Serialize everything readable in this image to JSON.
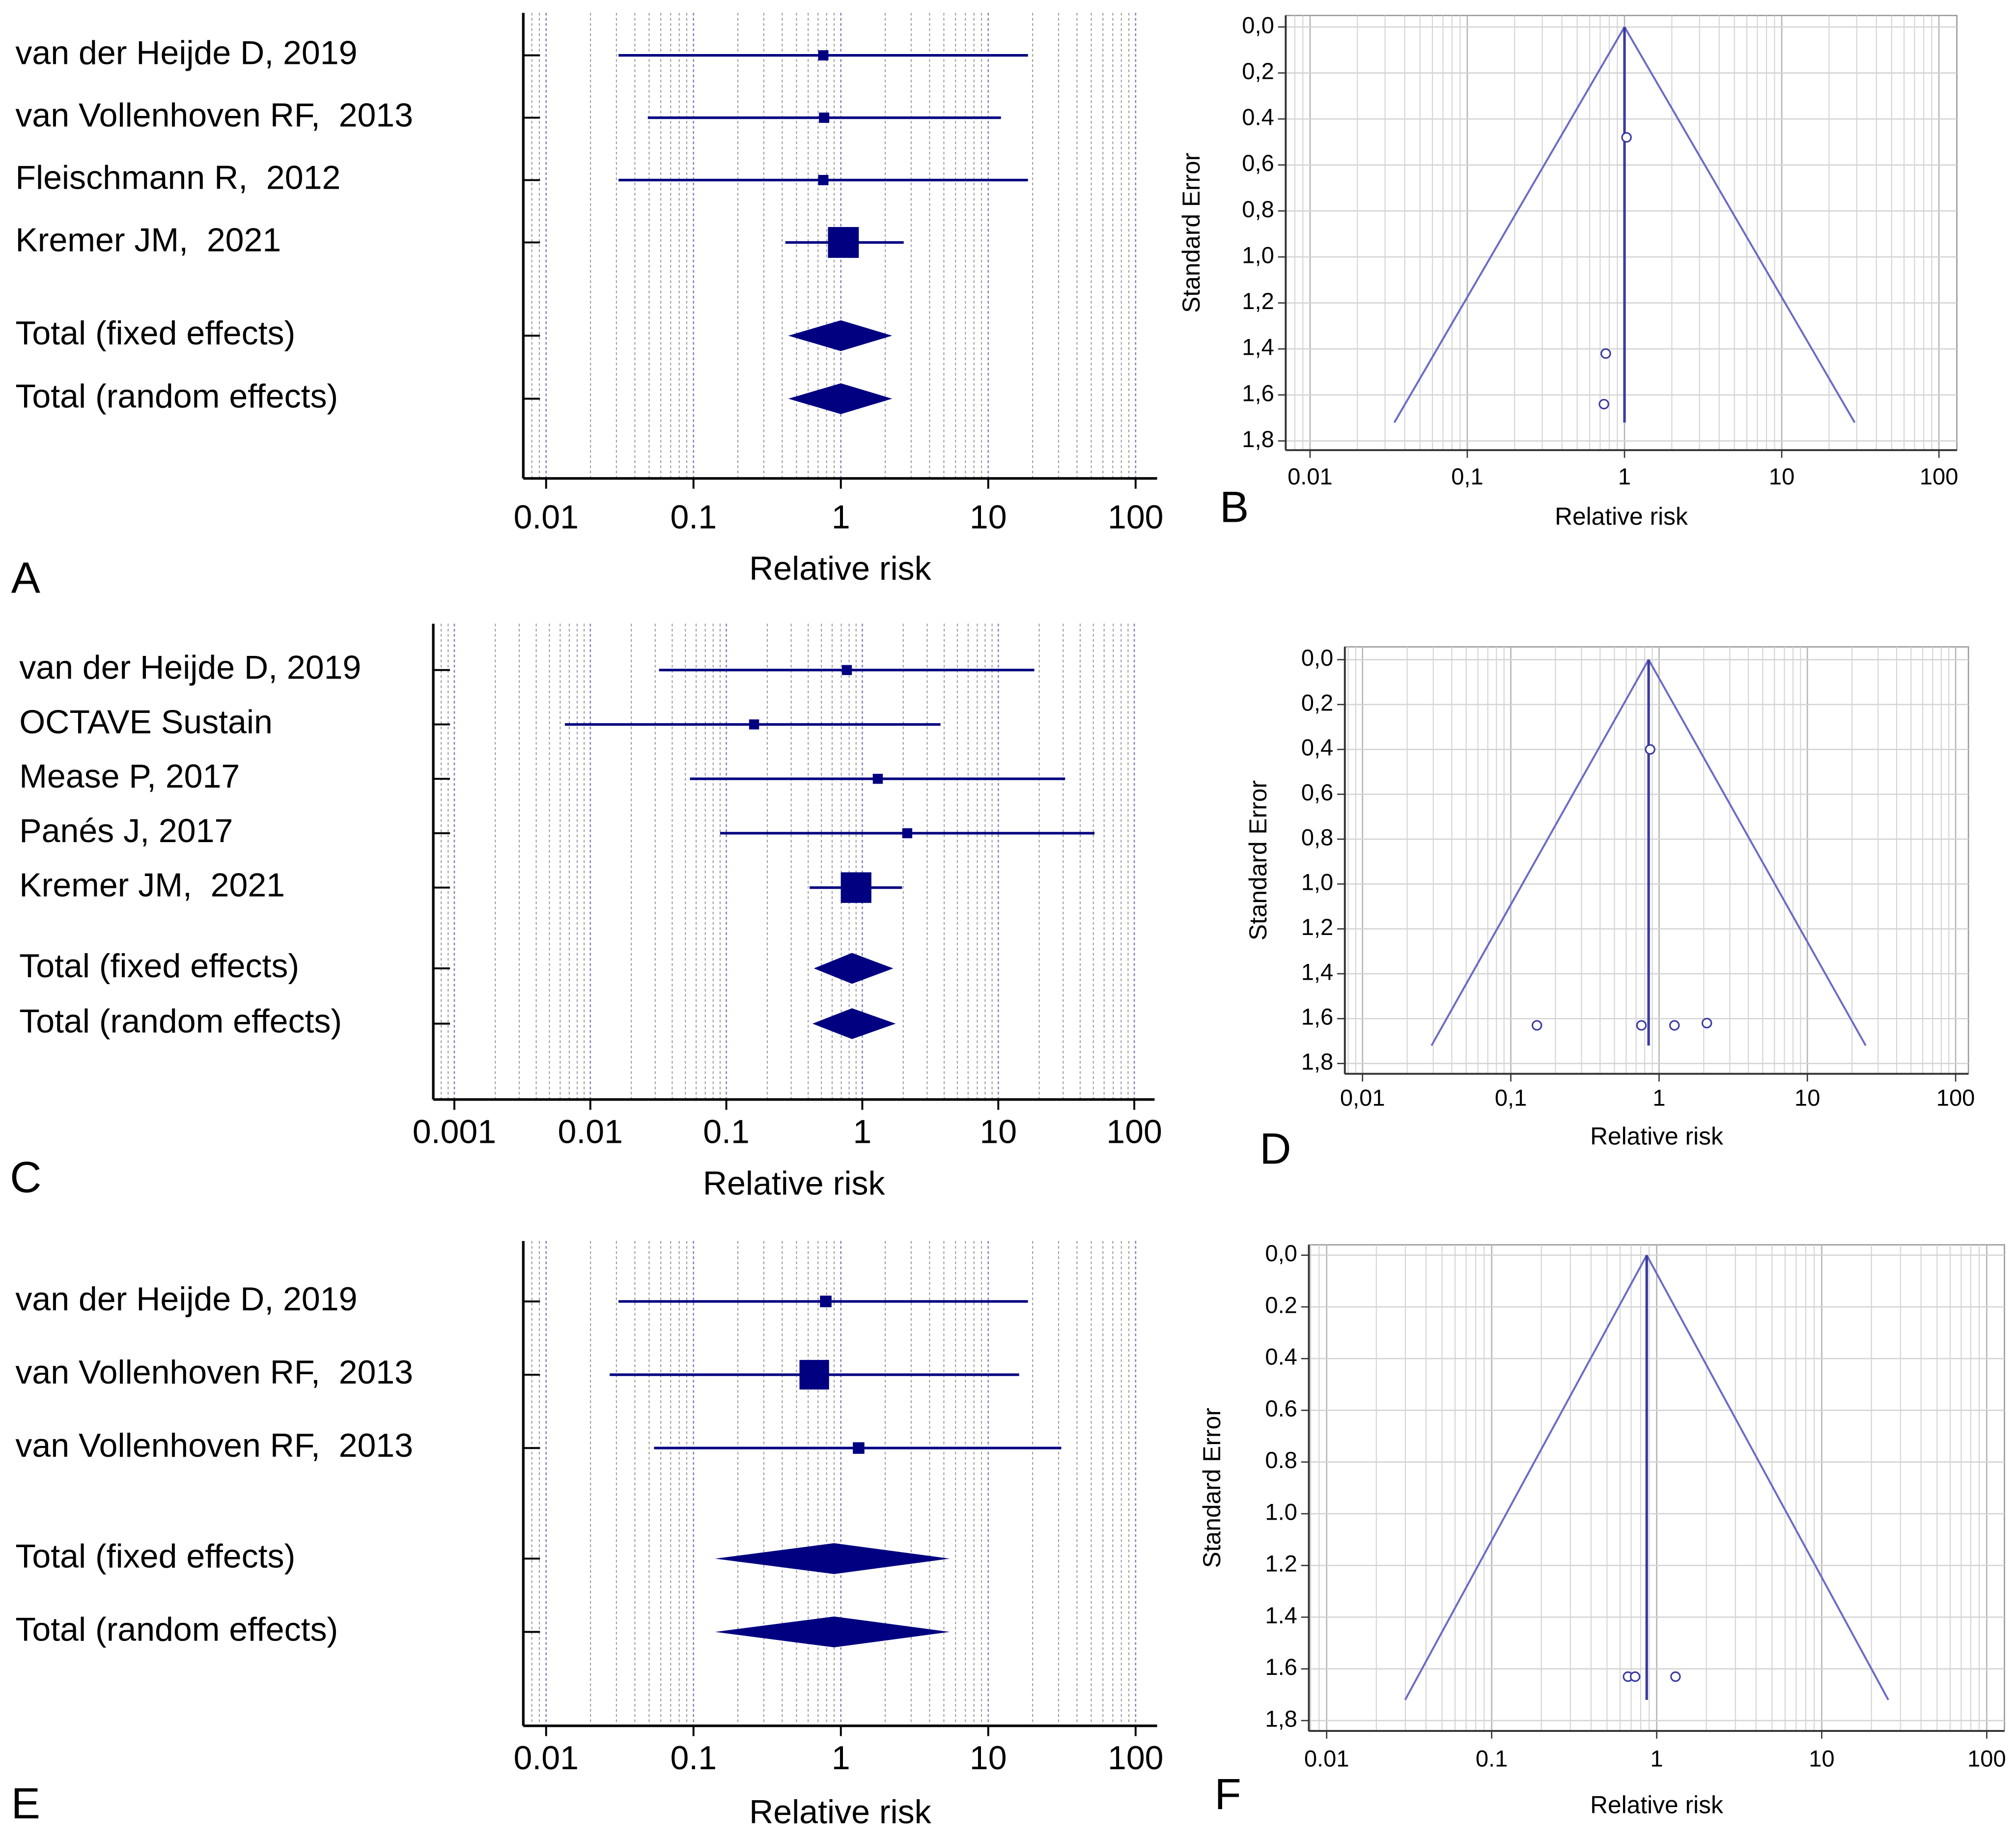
{
  "chart_data": [
    {
      "type": "forest",
      "label": "A",
      "xlabel": "Relative risk",
      "log_x": true,
      "grid": true,
      "color": "#000080",
      "studies": {
        "categories": [
          "van der Heijde D, 2019",
          "van Vollenhoven RF,  2013",
          "Fleischmann R,  2012",
          "Kremer JM,  2021"
        ],
        "values": [
          0.76,
          0.77,
          0.76,
          1.04
        ],
        "lower": [
          0.031,
          0.049,
          0.031,
          0.42
        ],
        "upper": [
          18.6,
          12.2,
          18.6,
          2.67
        ],
        "weights": [
          5,
          5,
          5,
          85
        ]
      },
      "summaries": {
        "categories": [
          "Total (fixed effects)",
          "Total (random effects)"
        ],
        "values": [
          1.0,
          1.0
        ],
        "lower": [
          0.44,
          0.44
        ],
        "upper": [
          2.23,
          2.23
        ]
      },
      "xlim": [
        0.007,
        140
      ],
      "xticks": [
        0.01,
        0.1,
        1,
        10,
        100
      ]
    },
    {
      "type": "funnel",
      "label": "B",
      "xlabel": "Relative risk",
      "ylabel": "Standard Error",
      "log_x": true,
      "grid": true,
      "color": "#6b6bc4",
      "marker_color": "#3a3aa0",
      "x": [
        1.03,
        0.76,
        0.74
      ],
      "values": [
        0.48,
        1.42,
        1.64
      ],
      "pooled_estimate": 1.0,
      "se_max": 1.72,
      "xlim": [
        0.007,
        130
      ],
      "ylim": [
        -0.05,
        1.84
      ],
      "y_inverted": true,
      "xticks": [
        0.01,
        {
          "value": 0.1,
          "label": "0,1"
        },
        1,
        10,
        100
      ],
      "yticks": [
        {
          "value": 0,
          "label": "0,0"
        },
        {
          "value": 0.2,
          "label": "0,2"
        },
        0.4,
        {
          "value": 0.6,
          "label": "0,6"
        },
        {
          "value": 0.8,
          "label": "0,8"
        },
        {
          "value": 1.0,
          "label": "1,0"
        },
        {
          "value": 1.2,
          "label": "1,2"
        },
        {
          "value": 1.4,
          "label": "1,4"
        },
        {
          "value": 1.6,
          "label": "1,6"
        },
        {
          "value": 1.8,
          "label": "1,8"
        }
      ]
    },
    {
      "type": "forest",
      "label": "C",
      "xlabel": "Relative risk",
      "log_x": true,
      "grid": true,
      "color": "#000080",
      "studies": {
        "categories": [
          "van der Heijde D, 2019",
          "OCTAVE Sustain",
          "Mease P, 2017",
          "Panés J, 2017",
          "Kremer JM,  2021"
        ],
        "values": [
          0.77,
          0.16,
          1.3,
          2.14,
          0.9
        ],
        "lower": [
          0.032,
          0.0065,
          0.054,
          0.09,
          0.41
        ],
        "upper": [
          18.4,
          3.76,
          31,
          51,
          1.96
        ],
        "weights": [
          4,
          4,
          4,
          4,
          84
        ]
      },
      "summaries": {
        "categories": [
          "Total (fixed effects)",
          "Total (random effects)"
        ],
        "values": [
          0.84,
          0.84
        ],
        "lower": [
          0.44,
          0.43
        ],
        "upper": [
          1.69,
          1.76
        ]
      },
      "xlim": [
        0.0007,
        141
      ],
      "xticks": [
        0.001,
        0.01,
        0.1,
        1,
        10,
        100
      ]
    },
    {
      "type": "funnel",
      "label": "D",
      "xlabel": "Relative risk",
      "ylabel": "Standard Error",
      "log_x": true,
      "grid": true,
      "color": "#6b6bc4",
      "marker_color": "#3a3aa0",
      "x": [
        0.87,
        0.15,
        0.76,
        1.27,
        2.1
      ],
      "values": [
        0.4,
        1.63,
        1.63,
        1.63,
        1.62
      ],
      "pooled_estimate": 0.85,
      "se_max": 1.72,
      "xlim": [
        0.0076,
        122
      ],
      "ylim": [
        -0.057,
        1.846
      ],
      "y_inverted": true,
      "xticks": [
        {
          "value": 0.01,
          "label": "0,01"
        },
        {
          "value": 0.1,
          "label": "0,1"
        },
        1,
        10,
        100
      ],
      "yticks": [
        {
          "value": 0,
          "label": "0,0"
        },
        {
          "value": 0.2,
          "label": "0,2"
        },
        {
          "value": 0.4,
          "label": "0,4"
        },
        {
          "value": 0.6,
          "label": "0,6"
        },
        {
          "value": 0.8,
          "label": "0,8"
        },
        {
          "value": 1.0,
          "label": "1,0"
        },
        {
          "value": 1.2,
          "label": "1,2"
        },
        {
          "value": 1.4,
          "label": "1,4"
        },
        {
          "value": 1.6,
          "label": "1,6"
        },
        {
          "value": 1.8,
          "label": "1,8"
        }
      ]
    },
    {
      "type": "forest",
      "label": "E",
      "xlabel": "Relative risk",
      "log_x": true,
      "grid": true,
      "color": "#000080",
      "studies": {
        "categories": [
          "van der Heijde D, 2019",
          "van Vollenhoven RF,  2013",
          "van Vollenhoven RF,  2013"
        ],
        "values": [
          0.79,
          0.66,
          1.32
        ],
        "lower": [
          0.031,
          0.027,
          0.054
        ],
        "upper": [
          18.6,
          16.2,
          31.3
        ],
        "weights": [
          10,
          80,
          10
        ]
      },
      "summaries": {
        "categories": [
          "Total (fixed effects)",
          "Total (random effects)"
        ],
        "values": [
          0.9,
          0.9
        ],
        "lower": [
          0.14,
          0.14
        ],
        "upper": [
          5.48,
          5.48
        ]
      },
      "xlim": [
        0.007,
        140
      ],
      "xticks": [
        0.01,
        0.1,
        1,
        10,
        100
      ]
    },
    {
      "type": "funnel",
      "label": "F",
      "xlabel": "Relative risk",
      "ylabel": "Standard Error",
      "log_x": true,
      "grid": true,
      "color": "#6b6bc4",
      "marker_color": "#3a3aa0",
      "x": [
        0.67,
        0.74,
        1.3
      ],
      "values": [
        1.63,
        1.63,
        1.63
      ],
      "pooled_estimate": 0.87,
      "se_max": 1.72,
      "xlim": [
        0.0078,
        128
      ],
      "ylim": [
        -0.04,
        1.84
      ],
      "y_inverted": true,
      "xticks": [
        0.01,
        0.1,
        1,
        10,
        100
      ],
      "yticks": [
        {
          "value": 0,
          "label": "0,0"
        },
        0.2,
        0.4,
        0.6,
        0.8,
        {
          "value": 1.0,
          "label": "1.0"
        },
        1.2,
        1.4,
        1.6,
        {
          "value": 1.8,
          "label": "1,8"
        }
      ]
    }
  ]
}
